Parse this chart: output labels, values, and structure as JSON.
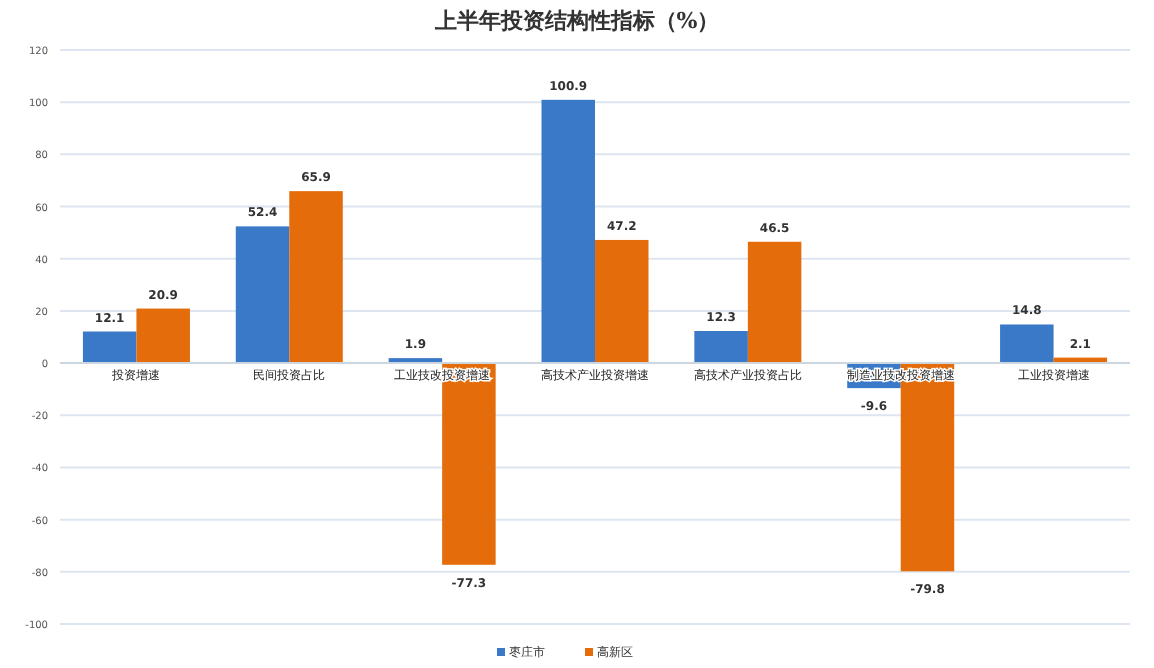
{
  "chart_data": {
    "type": "bar",
    "title": "上半年投资结构性指标（%）",
    "categories": [
      "投资增速",
      "民间投资占比",
      "工业技改投资增速",
      "高技术产业投资增速",
      "高技术产业投资占比",
      "制造业技改投资增速",
      "工业投资增速"
    ],
    "series": [
      {
        "name": "枣庄市",
        "color": "#3a78c8",
        "values": [
          12.1,
          52.4,
          1.9,
          100.9,
          12.3,
          -9.6,
          14.8
        ]
      },
      {
        "name": "高新区",
        "color": "#e46c0a",
        "values": [
          20.9,
          65.9,
          -77.3,
          47.2,
          46.5,
          -79.8,
          2.1
        ]
      }
    ],
    "ylim": [
      -100,
      120
    ],
    "yticks": [
      -100,
      -80,
      -60,
      -40,
      -20,
      0,
      20,
      40,
      60,
      80,
      100,
      120
    ],
    "grid": "y",
    "legend": "bottom",
    "data_labels": true
  }
}
